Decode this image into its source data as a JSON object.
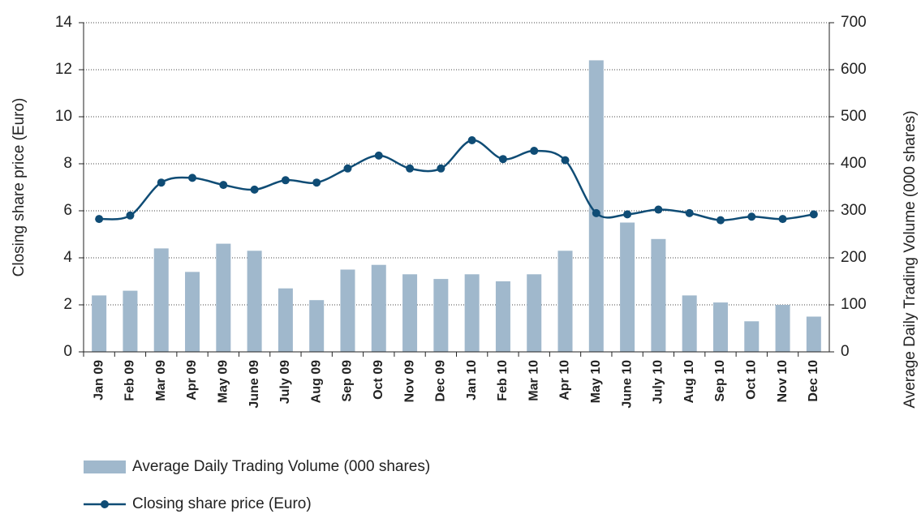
{
  "chart_data": {
    "type": "combo",
    "ylabel": "Closing share price (Euro)",
    "y2label": "Average Daily Trading Volume (000 shares)",
    "categories": [
      "Jan 09",
      "Feb 09",
      "Mar 09",
      "Apr 09",
      "May 09",
      "June 09",
      "July 09",
      "Aug 09",
      "Sep 09",
      "Oct 09",
      "Nov 09",
      "Dec 09",
      "Jan 10",
      "Feb 10",
      "Mar 10",
      "Apr 10",
      "May 10",
      "June 10",
      "July 10",
      "Aug 10",
      "Sep 10",
      "Oct 10",
      "Nov 10",
      "Dec 10"
    ],
    "series": [
      {
        "name": "Average Daily Trading Volume (000 shares)",
        "type": "bar",
        "axis": "y2",
        "color": "#a0b8cc",
        "values": [
          120,
          130,
          220,
          170,
          230,
          215,
          135,
          110,
          175,
          185,
          165,
          155,
          165,
          150,
          165,
          215,
          620,
          275,
          240,
          120,
          105,
          65,
          100,
          75
        ]
      },
      {
        "name": "Closing share price (Euro)",
        "type": "line",
        "axis": "y",
        "color": "#0f4c75",
        "values": [
          5.65,
          5.8,
          7.2,
          7.4,
          7.1,
          6.9,
          7.3,
          7.2,
          7.8,
          8.35,
          7.8,
          7.8,
          9.0,
          8.2,
          8.55,
          8.15,
          5.9,
          5.85,
          6.05,
          5.9,
          5.6,
          5.75,
          5.65,
          5.85
        ]
      }
    ],
    "ylim": [
      0,
      14
    ],
    "yticks": [
      0,
      2,
      4,
      6,
      8,
      10,
      12,
      14
    ],
    "y2lim": [
      0,
      700
    ],
    "y2ticks": [
      0,
      100,
      200,
      300,
      400,
      500,
      600,
      700
    ],
    "grid": true
  }
}
